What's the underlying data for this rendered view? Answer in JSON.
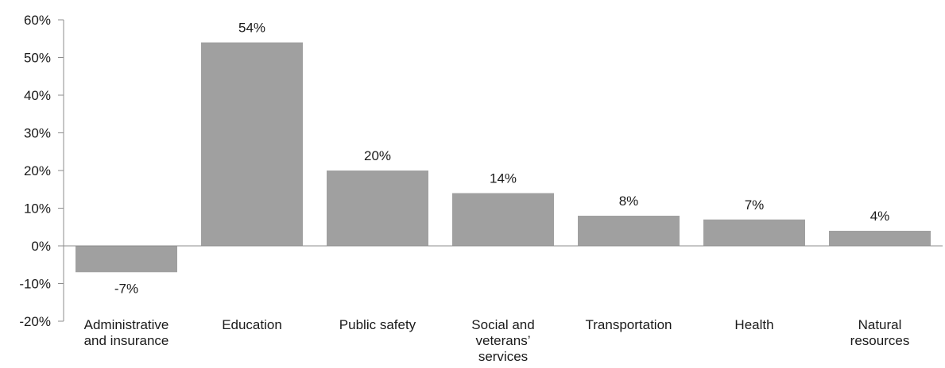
{
  "chart_data": {
    "type": "bar",
    "categories": [
      "Administrative and insurance",
      "Education",
      "Public safety",
      "Social and veterans’ services",
      "Transportation",
      "Health",
      "Natural resources"
    ],
    "category_lines": [
      [
        "Administrative",
        "and insurance"
      ],
      [
        "Education"
      ],
      [
        "Public safety"
      ],
      [
        "Social and",
        "veterans’",
        "services"
      ],
      [
        "Transportation"
      ],
      [
        "Health"
      ],
      [
        "Natural",
        "resources"
      ]
    ],
    "values": [
      -7,
      54,
      20,
      14,
      8,
      7,
      4
    ],
    "data_labels": [
      "-7%",
      "54%",
      "20%",
      "14%",
      "8%",
      "7%",
      "4%"
    ],
    "title": "",
    "xlabel": "",
    "ylabel": "",
    "ylim": [
      -20,
      60
    ],
    "yticks": [
      -20,
      -10,
      0,
      10,
      20,
      30,
      40,
      50,
      60
    ],
    "ytick_labels": [
      "-20%",
      "-10%",
      "0%",
      "10%",
      "20%",
      "30%",
      "40%",
      "50%",
      "60%"
    ],
    "grid": false,
    "legend": "none",
    "bar_color": "#a0a0a0",
    "axis_color": "#8c8c8c"
  }
}
